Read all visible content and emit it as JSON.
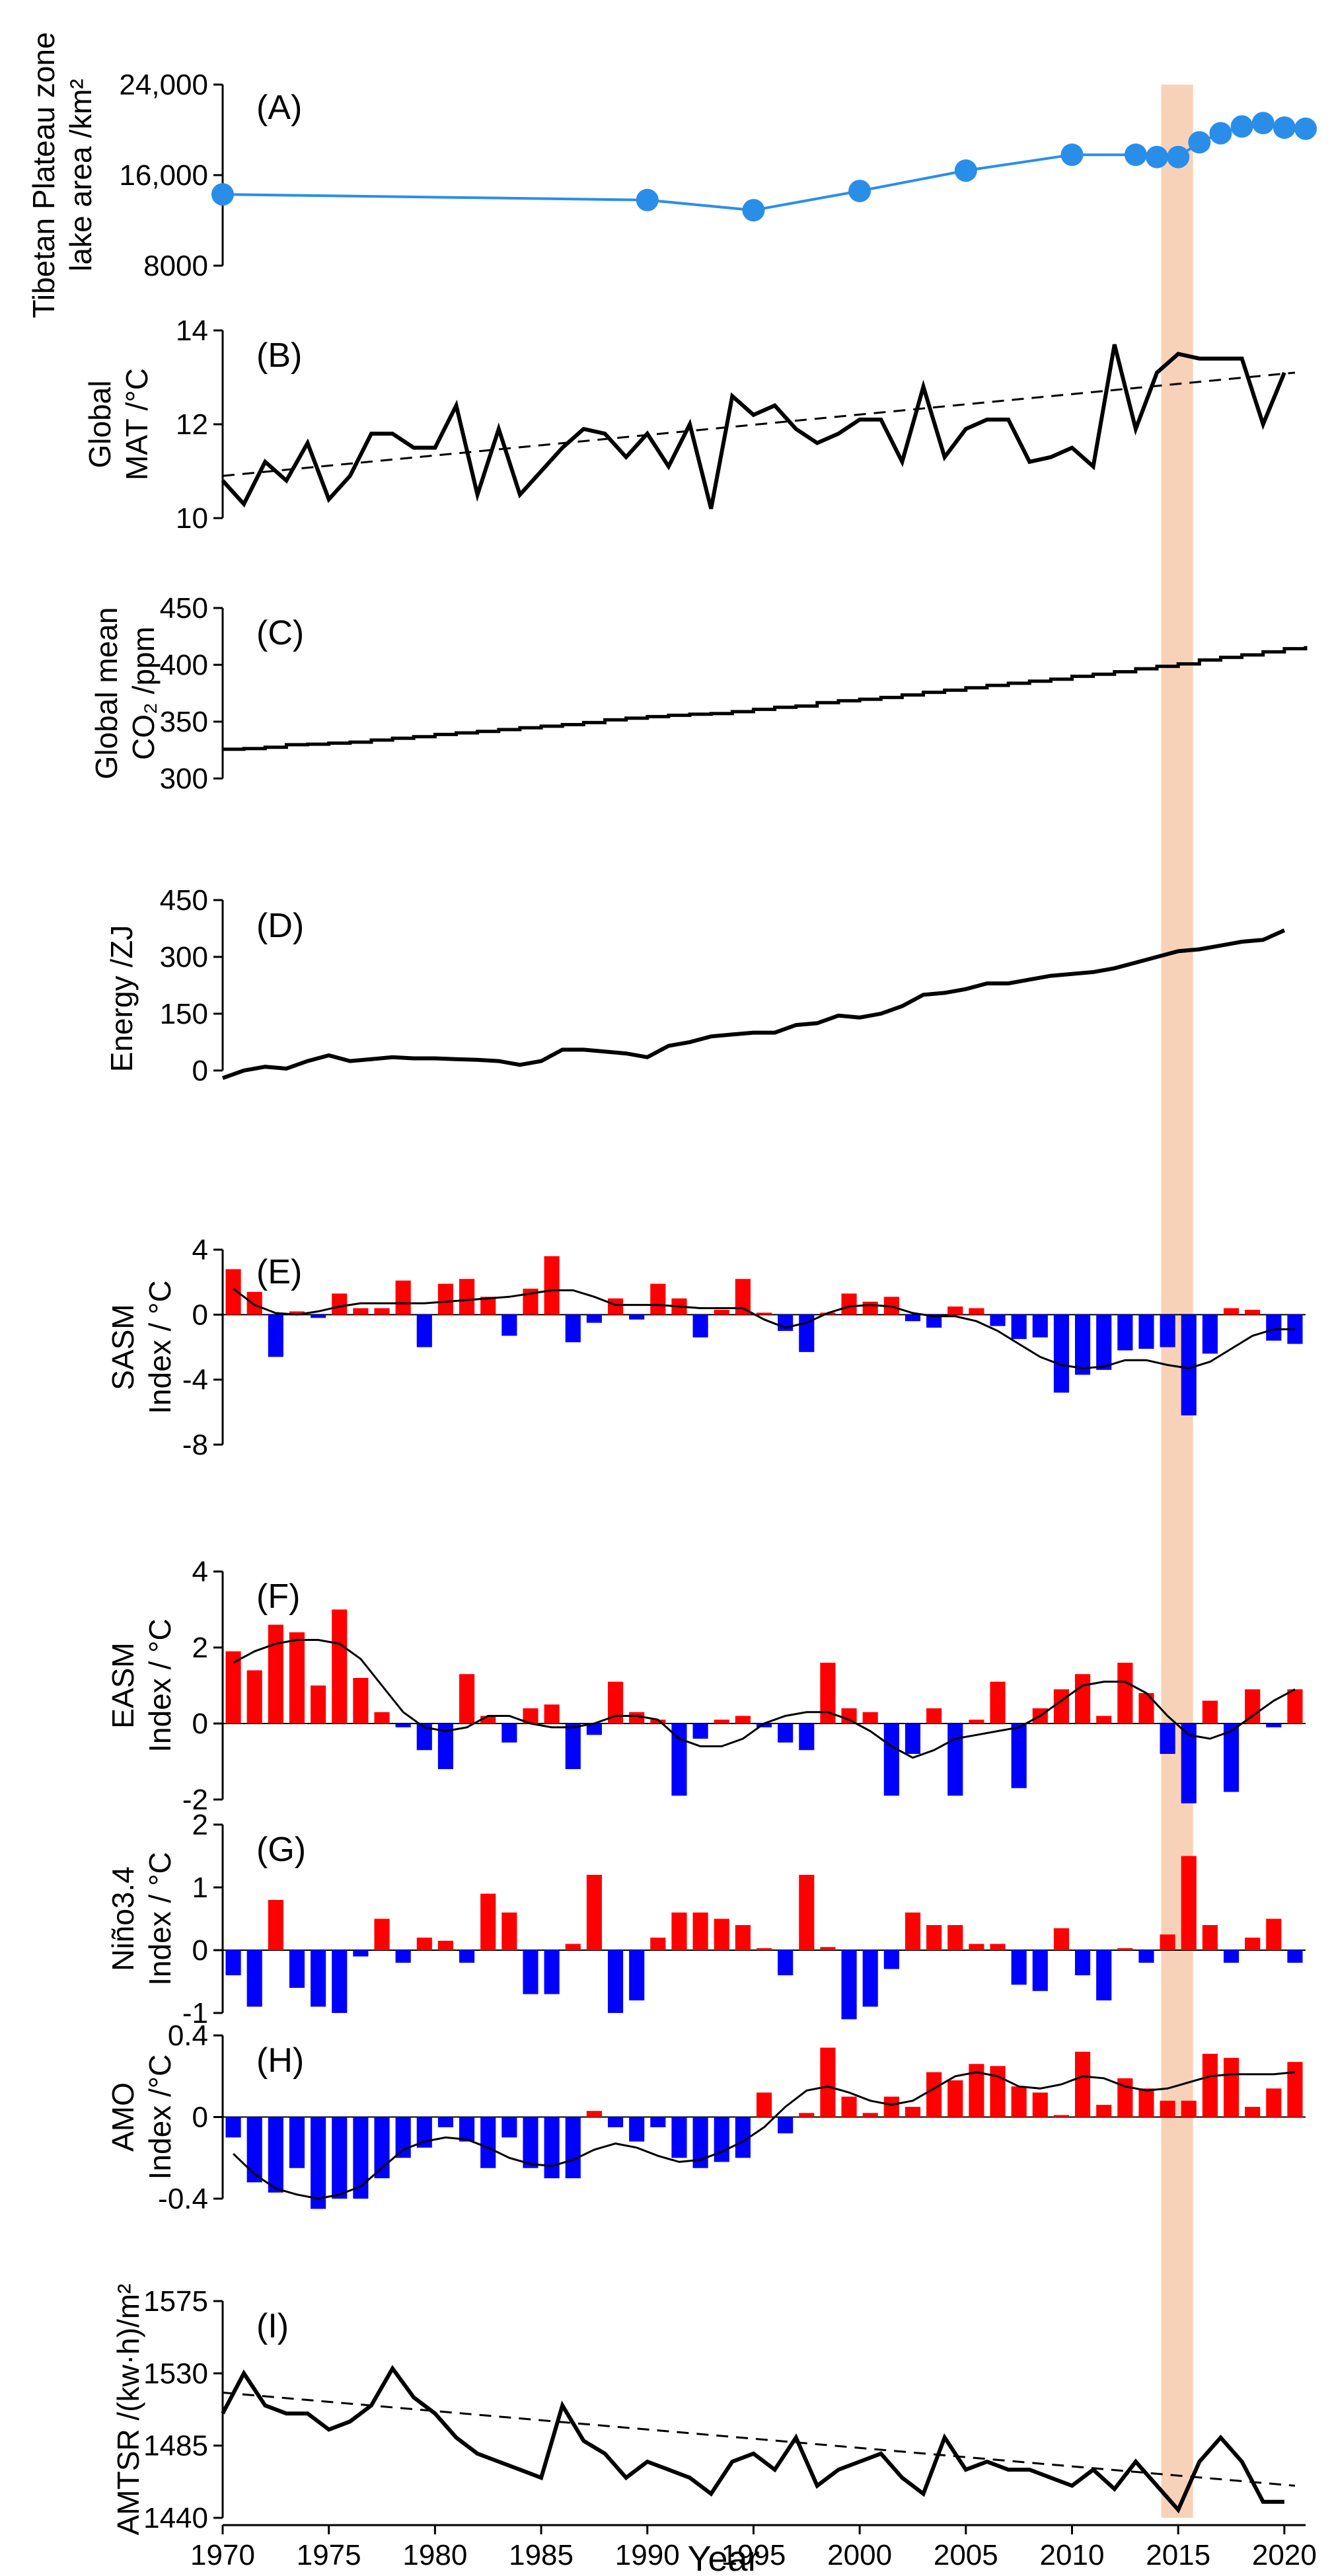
{
  "colors": {
    "highlight": "#f8d2b8",
    "lake": "#2a8ee8",
    "line": "#000000",
    "positive": "#ff0000",
    "negative": "#0000ff"
  },
  "x_axis": {
    "title": "Year",
    "ticks": [
      "1970",
      "1975",
      "1980",
      "1985",
      "1990",
      "1995",
      "2000",
      "2005",
      "2010",
      "2015",
      "2020"
    ],
    "range": [
      1970,
      2021
    ]
  },
  "highlight": {
    "from": 2014.2,
    "to": 2015.7
  },
  "chart_data": [
    {
      "id": "A",
      "panel_label": "(A)",
      "type": "line",
      "ylabel": [
        "Tibetan Plateau zone",
        "lake area /km²"
      ],
      "yticks": [
        "24,000",
        "16,000",
        "8000"
      ],
      "ytick_values": [
        24000,
        16000,
        8000
      ],
      "ylim": [
        8000,
        24000
      ],
      "x": [
        1970,
        1990,
        1995,
        2000,
        2005,
        2010,
        2013,
        2014,
        2015,
        2016,
        2017,
        2018,
        2019,
        2020,
        2021
      ],
      "markers": [
        1970,
        1990,
        1995,
        2000,
        2005,
        2010,
        2013,
        2014,
        2015,
        2016,
        2017,
        2018,
        2019,
        2020,
        2021
      ],
      "y": [
        14300,
        13800,
        12900,
        14600,
        16400,
        17800,
        17800,
        17600,
        17600,
        18900,
        19700,
        20300,
        20600,
        20200,
        20100
      ]
    },
    {
      "id": "B",
      "panel_label": "(B)",
      "type": "line",
      "ylabel": [
        "Global",
        "MAT /°C"
      ],
      "yticks": [
        "14",
        "12",
        "10"
      ],
      "ytick_values": [
        14,
        12,
        10
      ],
      "ylim": [
        10,
        14
      ],
      "x_start": 1970,
      "y": [
        10.8,
        10.3,
        11.2,
        10.8,
        11.6,
        10.4,
        10.9,
        11.8,
        11.8,
        11.5,
        11.5,
        12.4,
        10.5,
        11.9,
        10.5,
        11.0,
        11.5,
        11.9,
        11.8,
        11.3,
        11.8,
        11.1,
        12.0,
        10.2,
        12.6,
        12.2,
        12.4,
        11.9,
        11.6,
        11.8,
        12.1,
        12.1,
        11.2,
        12.8,
        11.3,
        11.9,
        12.1,
        12.1,
        11.2,
        11.3,
        11.5,
        11.1,
        13.7,
        11.9,
        13.1,
        13.5,
        13.4,
        13.4,
        13.4,
        12.0,
        13.1
      ],
      "trend": [
        10.9,
        13.1
      ]
    },
    {
      "id": "C",
      "panel_label": "(C)",
      "type": "step",
      "ylabel": [
        "Global mean",
        "CO₂ /ppm"
      ],
      "yticks": [
        "450",
        "400",
        "350",
        "300"
      ],
      "ytick_values": [
        450,
        400,
        350,
        300
      ],
      "ylim": [
        300,
        450
      ],
      "x_start": 1970,
      "y": [
        325.7,
        326.3,
        327.5,
        329.7,
        330.2,
        331.1,
        332.0,
        333.8,
        335.4,
        336.8,
        338.7,
        340.1,
        341.4,
        343.0,
        344.6,
        346.0,
        347.4,
        349.2,
        351.6,
        353.1,
        354.4,
        355.6,
        356.5,
        357.1,
        358.8,
        360.8,
        362.6,
        363.7,
        366.7,
        368.4,
        369.7,
        371.3,
        373.5,
        375.8,
        377.7,
        379.8,
        381.9,
        383.8,
        385.6,
        387.4,
        389.9,
        391.7,
        393.9,
        396.5,
        398.7,
        400.8,
        404.2,
        406.5,
        408.7,
        411.4,
        414.2,
        416.5
      ]
    },
    {
      "id": "D",
      "panel_label": "(D)",
      "type": "line",
      "ylabel": [
        "Energy /ZJ"
      ],
      "yticks": [
        "450",
        "300",
        "150",
        "0"
      ],
      "ytick_values": [
        450,
        300,
        150,
        0
      ],
      "ylim": [
        -70,
        450
      ],
      "x_start": 1970,
      "y": [
        -20,
        0,
        10,
        5,
        25,
        40,
        25,
        30,
        35,
        32,
        32,
        30,
        28,
        25,
        15,
        25,
        55,
        55,
        50,
        45,
        35,
        65,
        75,
        90,
        95,
        100,
        100,
        120,
        125,
        145,
        140,
        150,
        170,
        200,
        205,
        215,
        230,
        230,
        240,
        250,
        255,
        260,
        270,
        285,
        300,
        315,
        320,
        330,
        340,
        345,
        370
      ]
    },
    {
      "id": "E",
      "panel_label": "(E)",
      "type": "bar",
      "ylabel": [
        "SASM",
        "Index / °C"
      ],
      "yticks": [
        "4",
        "0",
        "-4",
        "-8"
      ],
      "ytick_values": [
        4,
        0,
        -4,
        -8
      ],
      "ylim": [
        -8,
        4
      ],
      "x_start": 1970,
      "values": [
        2.8,
        1.4,
        -2.6,
        0.2,
        -0.2,
        1.3,
        0.4,
        0.4,
        2.1,
        -2.0,
        1.9,
        2.2,
        1.1,
        -1.3,
        1.6,
        3.6,
        -1.7,
        -0.5,
        1.0,
        -0.3,
        1.9,
        1.0,
        -1.4,
        0.3,
        2.2,
        0.1,
        -1.0,
        -2.3,
        0.1,
        1.3,
        0.8,
        1.1,
        -0.4,
        -0.8,
        0.5,
        0.4,
        -0.7,
        -1.5,
        -1.4,
        -4.8,
        -3.7,
        -3.4,
        -2.2,
        -2.1,
        -2.0,
        -6.2,
        -2.4,
        0.4,
        0.3,
        -1.6,
        -1.8
      ],
      "smooth": [
        1.6,
        0.6,
        0.1,
        0.0,
        0.2,
        0.5,
        0.7,
        0.7,
        0.7,
        0.7,
        0.8,
        0.9,
        1.0,
        1.1,
        1.3,
        1.5,
        1.5,
        1.1,
        0.6,
        0.6,
        0.6,
        0.5,
        0.4,
        0.4,
        0.4,
        -0.3,
        -0.8,
        -0.5,
        0.1,
        0.5,
        0.6,
        0.5,
        0.1,
        -0.1,
        -0.1,
        -0.4,
        -1.0,
        -1.8,
        -2.6,
        -3.1,
        -3.3,
        -3.2,
        -2.8,
        -2.8,
        -3.1,
        -3.3,
        -2.9,
        -2.1,
        -1.3,
        -0.9,
        -0.9
      ]
    },
    {
      "id": "F",
      "panel_label": "(F)",
      "type": "bar",
      "ylabel": [
        "EASM",
        "Index / °C"
      ],
      "yticks": [
        "4",
        "2",
        "0",
        "-2"
      ],
      "ytick_values": [
        4,
        2,
        0,
        -2
      ],
      "ylim": [
        -2,
        4
      ],
      "x_start": 1970,
      "values": [
        1.9,
        1.4,
        2.6,
        2.4,
        1.0,
        3.0,
        1.2,
        0.3,
        -0.1,
        -0.7,
        -1.2,
        1.3,
        0.2,
        -0.5,
        0.4,
        0.5,
        -1.2,
        -0.3,
        1.1,
        0.3,
        0.1,
        -1.9,
        -0.4,
        0.1,
        0.2,
        -0.1,
        -0.5,
        -0.7,
        1.6,
        0.4,
        0.3,
        -1.9,
        -0.8,
        0.4,
        -1.9,
        0.1,
        1.1,
        -1.7,
        0.4,
        0.9,
        1.3,
        0.2,
        1.6,
        0.8,
        -0.8,
        -2.1,
        0.6,
        -1.8,
        0.9,
        -0.1,
        0.9
      ],
      "smooth": [
        1.6,
        1.9,
        2.1,
        2.2,
        2.2,
        2.1,
        1.7,
        1.0,
        0.3,
        -0.1,
        -0.2,
        -0.1,
        0.2,
        0.2,
        0.0,
        -0.1,
        -0.1,
        0.0,
        0.2,
        0.2,
        0.1,
        -0.4,
        -0.6,
        -0.6,
        -0.4,
        0.0,
        0.2,
        0.3,
        0.3,
        0.1,
        -0.2,
        -0.6,
        -0.9,
        -0.7,
        -0.4,
        -0.3,
        -0.2,
        -0.1,
        0.2,
        0.6,
        1.0,
        1.1,
        1.1,
        0.8,
        0.2,
        -0.3,
        -0.4,
        -0.2,
        0.2,
        0.6,
        0.9
      ]
    },
    {
      "id": "G",
      "panel_label": "(G)",
      "type": "bar",
      "ylabel": [
        "Niño3.4",
        "Index / °C"
      ],
      "yticks": [
        "2",
        "1",
        "0",
        "-1"
      ],
      "ytick_values": [
        2,
        1,
        0,
        -1
      ],
      "ylim": [
        -1,
        2
      ],
      "x_start": 1970,
      "values": [
        -0.4,
        -0.9,
        0.8,
        -0.6,
        -0.9,
        -1.0,
        -0.1,
        0.5,
        -0.2,
        0.2,
        0.15,
        -0.2,
        0.9,
        0.6,
        -0.7,
        -0.7,
        0.1,
        1.2,
        -1.0,
        -0.8,
        0.2,
        0.6,
        0.6,
        0.5,
        0.4,
        0.0,
        -0.4,
        1.2,
        0.05,
        -1.1,
        -0.9,
        -0.3,
        0.6,
        0.4,
        0.4,
        0.1,
        0.1,
        -0.55,
        -0.65,
        0.35,
        -0.4,
        -0.8,
        0.0,
        -0.2,
        0.25,
        1.5,
        0.4,
        -0.2,
        0.2,
        0.5,
        -0.2
      ]
    },
    {
      "id": "H",
      "panel_label": "(H)",
      "type": "bar",
      "ylabel": [
        "AMO",
        "Index /°C"
      ],
      "yticks": [
        "0.4",
        "0",
        "-0.4"
      ],
      "ytick_values": [
        0.4,
        0,
        -0.4
      ],
      "ylim": [
        -0.4,
        0.4
      ],
      "x_start": 1970,
      "values": [
        -0.1,
        -0.32,
        -0.37,
        -0.25,
        -0.45,
        -0.4,
        -0.4,
        -0.3,
        -0.2,
        -0.15,
        -0.05,
        -0.12,
        -0.25,
        -0.1,
        -0.25,
        -0.3,
        -0.3,
        0.03,
        -0.05,
        -0.12,
        -0.05,
        -0.2,
        -0.25,
        -0.22,
        -0.2,
        0.12,
        -0.08,
        0.02,
        0.34,
        0.1,
        0.02,
        0.1,
        0.05,
        0.22,
        0.18,
        0.26,
        0.25,
        0.15,
        0.12,
        0.0,
        0.32,
        0.06,
        0.19,
        0.14,
        0.08,
        0.08,
        0.31,
        0.29,
        0.05,
        0.14,
        0.27
      ],
      "smooth": [
        -0.18,
        -0.28,
        -0.35,
        -0.38,
        -0.4,
        -0.38,
        -0.34,
        -0.25,
        -0.16,
        -0.12,
        -0.1,
        -0.11,
        -0.15,
        -0.2,
        -0.23,
        -0.24,
        -0.21,
        -0.16,
        -0.13,
        -0.15,
        -0.19,
        -0.22,
        -0.21,
        -0.17,
        -0.12,
        -0.05,
        0.05,
        0.13,
        0.15,
        0.12,
        0.08,
        0.06,
        0.08,
        0.14,
        0.2,
        0.22,
        0.2,
        0.15,
        0.14,
        0.16,
        0.2,
        0.19,
        0.15,
        0.13,
        0.14,
        0.17,
        0.2,
        0.21,
        0.21,
        0.21,
        0.22
      ]
    },
    {
      "id": "I",
      "panel_label": "(I)",
      "type": "line",
      "ylabel": [
        "AMTSR /(kw·h)/m²"
      ],
      "yticks": [
        "1575",
        "1530",
        "1485",
        "1440"
      ],
      "ytick_values": [
        1575,
        1530,
        1485,
        1440
      ],
      "ylim": [
        1440,
        1575
      ],
      "x_start": 1970,
      "y": [
        1505,
        1530,
        1510,
        1505,
        1505,
        1495,
        1500,
        1510,
        1533,
        1515,
        1505,
        1490,
        1480,
        1475,
        1470,
        1465,
        1510,
        1488,
        1480,
        1465,
        1475,
        1470,
        1465,
        1455,
        1475,
        1480,
        1470,
        1490,
        1460,
        1470,
        1475,
        1480,
        1465,
        1455,
        1490,
        1470,
        1475,
        1470,
        1470,
        1465,
        1460,
        1470,
        1458,
        1475,
        1460,
        1445,
        1475,
        1490,
        1475,
        1450,
        1450
      ],
      "trend": [
        1518,
        1460
      ]
    }
  ]
}
